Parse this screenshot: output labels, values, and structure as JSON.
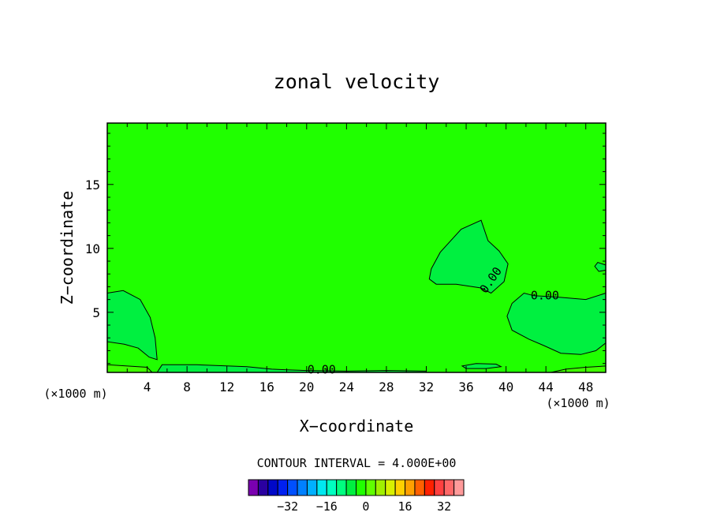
{
  "chart_data": {
    "type": "contour",
    "title": "zonal velocity",
    "xlabel": "X−coordinate",
    "ylabel": "Z−coordinate",
    "x_unit_left": "(×1000 m)",
    "x_unit_right": "(×1000 m)",
    "xlim": [
      0,
      50
    ],
    "ylim": [
      0.3,
      19.8
    ],
    "x_ticks": [
      4,
      8,
      12,
      16,
      20,
      24,
      28,
      32,
      36,
      40,
      44,
      48
    ],
    "y_ticks": [
      5,
      10,
      15
    ],
    "contour_labels": [
      {
        "text": "0.00",
        "x": 38.5,
        "y": 7.5,
        "rotate": -55
      },
      {
        "text": "0.00",
        "x": 43.9,
        "y": 6.3,
        "rotate": 0
      },
      {
        "text": "0.00",
        "x": 21.5,
        "y": 0.5,
        "rotate": 0
      }
    ],
    "regions": [
      {
        "name": "negative-lobe-right-mid",
        "level": "slightly-negative",
        "color": "#00f040",
        "outline": [
          [
            32.5,
            8.4
          ],
          [
            33.4,
            9.7
          ],
          [
            35.5,
            11.5
          ],
          [
            37.5,
            12.2
          ],
          [
            38.2,
            10.6
          ],
          [
            39.3,
            9.8
          ],
          [
            40.2,
            8.8
          ],
          [
            39.8,
            7.4
          ],
          [
            38.5,
            6.5
          ],
          [
            37.5,
            6.9
          ],
          [
            35,
            7.2
          ],
          [
            33,
            7.2
          ],
          [
            32.3,
            7.6
          ]
        ]
      },
      {
        "name": "negative-lobe-right-low",
        "level": "slightly-negative",
        "color": "#00f040",
        "outline": [
          [
            50,
            6.5
          ],
          [
            48,
            6
          ],
          [
            45,
            6.2
          ],
          [
            42.8,
            6.3
          ],
          [
            41.8,
            6.5
          ],
          [
            40.6,
            5.7
          ],
          [
            40.1,
            4.7
          ],
          [
            40.6,
            3.6
          ],
          [
            42.3,
            2.9
          ],
          [
            43.8,
            2.4
          ],
          [
            45.5,
            1.8
          ],
          [
            47.5,
            1.7
          ],
          [
            49,
            2
          ],
          [
            50,
            2.6
          ]
        ]
      },
      {
        "name": "negative-blob-right-edge",
        "level": "slightly-negative",
        "color": "#00f040",
        "outline": [
          [
            50,
            8.7
          ],
          [
            49.2,
            8.9
          ],
          [
            48.9,
            8.6
          ],
          [
            49.3,
            8.2
          ],
          [
            50,
            8.3
          ]
        ]
      },
      {
        "name": "negative-lobe-left",
        "level": "slightly-negative",
        "color": "#00f040",
        "outline": [
          [
            0,
            6.5
          ],
          [
            1.6,
            6.7
          ],
          [
            3.3,
            6
          ],
          [
            4.3,
            4.6
          ],
          [
            4.8,
            3
          ],
          [
            5,
            1.3
          ],
          [
            4.2,
            1.5
          ],
          [
            3.1,
            2.2
          ],
          [
            1.7,
            2.5
          ],
          [
            0,
            2.7
          ]
        ]
      },
      {
        "name": "negative-strip-bottom-1",
        "level": "slightly-negative",
        "color": "#00f040",
        "outline": [
          [
            5,
            0.3
          ],
          [
            5.5,
            0.9
          ],
          [
            9,
            0.9
          ],
          [
            14,
            0.75
          ],
          [
            16.5,
            0.55
          ],
          [
            18,
            0.5
          ],
          [
            20,
            0.45
          ],
          [
            24,
            0.4
          ],
          [
            28,
            0.45
          ],
          [
            32,
            0.4
          ],
          [
            32,
            0.3
          ]
        ]
      },
      {
        "name": "negative-blob-bottom-2",
        "level": "slightly-negative",
        "color": "#00f040",
        "outline": [
          [
            35.6,
            0.8
          ],
          [
            37,
            1
          ],
          [
            39,
            0.95
          ],
          [
            39.5,
            0.75
          ],
          [
            38,
            0.6
          ],
          [
            36,
            0.6
          ]
        ]
      },
      {
        "name": "positive-strip-bottom-left",
        "level": "slightly-positive",
        "color": "#40ff00",
        "outline": [
          [
            0,
            0.3
          ],
          [
            0,
            0.9
          ],
          [
            2,
            0.8
          ],
          [
            4,
            0.7
          ],
          [
            4.5,
            0.3
          ]
        ]
      },
      {
        "name": "positive-strip-bottom-right",
        "level": "slightly-positive",
        "color": "#40ff00",
        "outline": [
          [
            44.5,
            0.3
          ],
          [
            46,
            0.55
          ],
          [
            48,
            0.7
          ],
          [
            50,
            0.8
          ],
          [
            50,
            0.3
          ]
        ]
      }
    ],
    "background_level": "zero",
    "background_color": "#20ff00"
  },
  "contour_interval_text": "CONTOUR INTERVAL = 4.000E+00",
  "colorbar": {
    "colors": [
      "#7a00b0",
      "#2a00a0",
      "#0008c8",
      "#0020f0",
      "#0050ff",
      "#0080ff",
      "#00b0ff",
      "#00e8f0",
      "#00ffc0",
      "#00ff80",
      "#00f040",
      "#20ff00",
      "#60ff00",
      "#a0f000",
      "#d8f000",
      "#ffd000",
      "#ffa000",
      "#ff6000",
      "#ff2000",
      "#ff4040",
      "#ff6868",
      "#ff9a9a"
    ],
    "tick_labels": [
      {
        "text": "−32",
        "index": 3
      },
      {
        "text": "−16",
        "index": 7
      },
      {
        "text": "0",
        "index": 11
      },
      {
        "text": "16",
        "index": 15
      },
      {
        "text": "32",
        "index": 19
      }
    ]
  }
}
